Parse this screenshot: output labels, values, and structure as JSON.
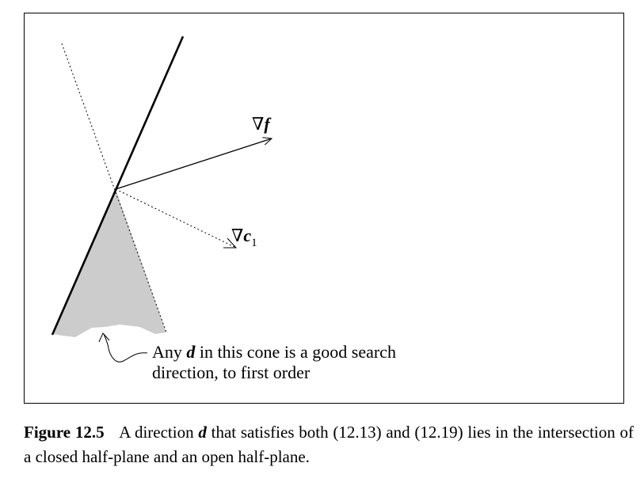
{
  "diagram": {
    "grad_f_label": {
      "nabla": "∇",
      "symbol": "f"
    },
    "grad_c1_label": {
      "nabla": "∇",
      "symbol": "c",
      "subscript": "1"
    },
    "annotation": {
      "line1_prefix": "Any",
      "line1_symbol": "d",
      "line1_suffix": "in this cone is a good search",
      "line2": "direction, to first order"
    }
  },
  "caption": {
    "label": "Figure 12.5",
    "text_before": "A direction",
    "symbol": "d",
    "text_after": "that satisfies both (12.13) and (12.19) lies in the intersection of a closed half-plane and an open half-plane."
  }
}
